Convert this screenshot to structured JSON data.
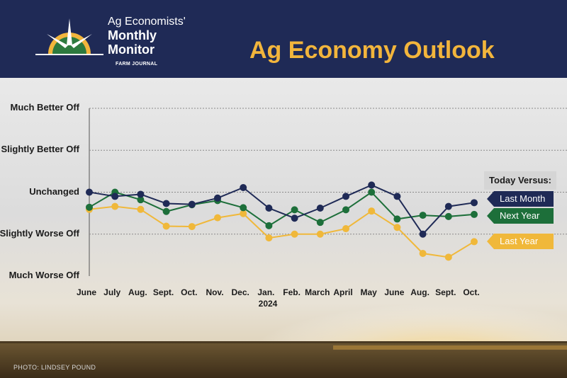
{
  "header": {
    "logo_line1": "Ag Economists'",
    "logo_line2": "Monthly",
    "logo_line3": "Monitor",
    "logo_brand": "FARM JOURNAL",
    "title": "Ag Economy Outlook"
  },
  "photo_credit": "PHOTO: LINDSEY POUND",
  "colors": {
    "header_bg": "#1f2a56",
    "title": "#f2b53c",
    "last_month": "#1f2a56",
    "next_year": "#1d6f3a",
    "last_year": "#f0b83a"
  },
  "chart_data": {
    "type": "line",
    "categories": [
      "June",
      "July",
      "Aug.",
      "Sept.",
      "Oct.",
      "Nov.",
      "Dec.",
      "Jan.",
      "Feb.",
      "March",
      "April",
      "May",
      "June",
      "Aug.",
      "Sept.",
      "Oct."
    ],
    "year_marker": {
      "category_index": 7,
      "label": "2024"
    },
    "y_levels": [
      "Much Worse Off",
      "Slightly Worse Off",
      "Unchanged",
      "Slightly Better Off",
      "Much Better Off"
    ],
    "ylim": [
      -2,
      2
    ],
    "grid": true,
    "legend": {
      "title": "Today Versus:",
      "placement": "right"
    },
    "series": [
      {
        "name": "Last Month",
        "color": "#1f2a56",
        "values": [
          0.0,
          -0.1,
          -0.05,
          -0.27,
          -0.29,
          -0.14,
          0.11,
          -0.38,
          -0.62,
          -0.38,
          -0.1,
          0.17,
          -0.1,
          -1.0,
          -0.34,
          -0.25
        ]
      },
      {
        "name": "Next Year",
        "color": "#1d6f3a",
        "values": [
          -0.36,
          0.0,
          -0.18,
          -0.46,
          -0.3,
          -0.2,
          -0.37,
          -0.8,
          -0.42,
          -0.72,
          -0.42,
          0.0,
          -0.64,
          -0.55,
          -0.58,
          -0.53
        ]
      },
      {
        "name": "Last Year",
        "color": "#f0b83a",
        "values": [
          -0.41,
          -0.34,
          -0.41,
          -0.81,
          -0.82,
          -0.61,
          -0.51,
          -1.09,
          -1.0,
          -1.0,
          -0.87,
          -0.45,
          -0.84,
          -1.46,
          -1.55,
          -1.18
        ]
      }
    ]
  }
}
